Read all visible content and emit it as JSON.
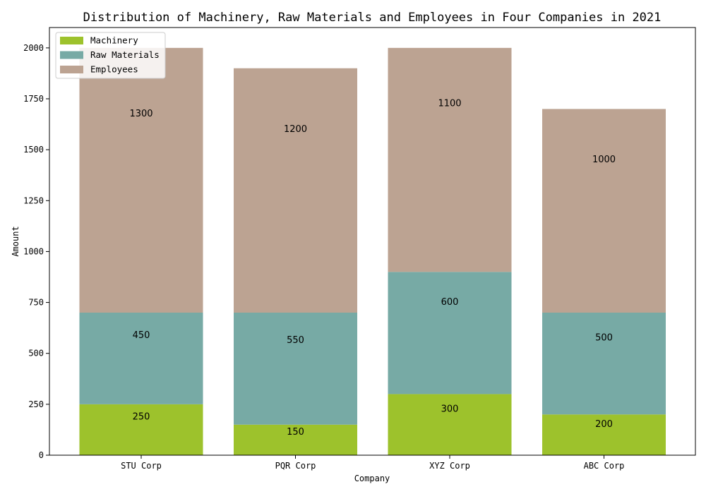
{
  "chart_data": {
    "type": "bar",
    "stacked": true,
    "title": "Distribution of Machinery, Raw Materials and Employees in Four Companies in 2021",
    "xlabel": "Company",
    "ylabel": "Amount",
    "categories": [
      "STU Corp",
      "PQR Corp",
      "XYZ Corp",
      "ABC Corp"
    ],
    "series": [
      {
        "name": "Machinery",
        "values": [
          250,
          150,
          300,
          200
        ],
        "color": "#9dc22c"
      },
      {
        "name": "Raw Materials",
        "values": [
          450,
          550,
          600,
          500
        ],
        "color": "#77aaa5"
      },
      {
        "name": "Employees",
        "values": [
          1300,
          1200,
          1100,
          1000
        ],
        "color": "#bca392"
      }
    ],
    "ylim": [
      0,
      2100
    ],
    "yticks": [
      0,
      250,
      500,
      750,
      1000,
      1250,
      1500,
      1750,
      2000
    ],
    "grid": false,
    "legend_position": "top-left"
  }
}
